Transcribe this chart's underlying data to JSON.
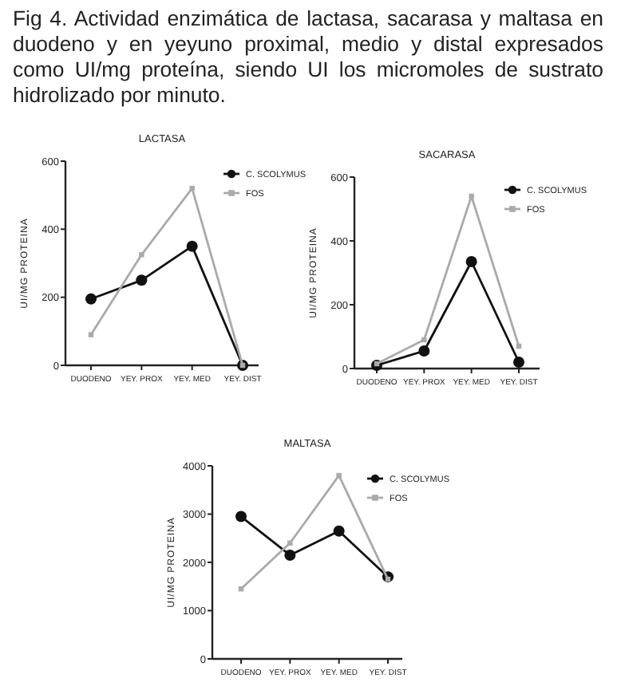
{
  "chart_data": [
    {
      "type": "other",
      "title": "Fig 4. Actividad enzimática de lactasa, sacarasa y maltasa en duodeno y en yeyuno proximal, medio y distal expresados como UI/mg proteína, siendo UI los micromoles de sustrato hidrolizado por minuto."
    },
    {
      "type": "line",
      "title": "LACTASA",
      "ylabel": "UI/MG PROTEINA",
      "categories": [
        "DUODENO",
        "YEY. PROX",
        "YEY. MED",
        "YEY. DIST"
      ],
      "ylim": [
        0,
        600
      ],
      "yticks": [
        0,
        200,
        400,
        600
      ],
      "legend": "top right",
      "grid": false,
      "series": [
        {
          "name": "C. SCOLYMUS",
          "color": "#111111",
          "marker": "circle",
          "values": [
            195,
            250,
            350,
            0
          ]
        },
        {
          "name": "FOS",
          "color": "#aaaaaa",
          "marker": "square",
          "values": [
            90,
            325,
            520,
            0
          ]
        }
      ]
    },
    {
      "type": "line",
      "title": "SACARASA",
      "ylabel": "UI/MG PROTEINA",
      "categories": [
        "DUODENO",
        "YEY. PROX",
        "YEY. MED",
        "YEY. DIST"
      ],
      "ylim": [
        0,
        600
      ],
      "yticks": [
        0,
        200,
        400,
        600
      ],
      "legend": "top right",
      "grid": false,
      "series": [
        {
          "name": "C. SCOLYMUS",
          "color": "#111111",
          "marker": "circle",
          "values": [
            10,
            55,
            335,
            20
          ]
        },
        {
          "name": "FOS",
          "color": "#aaaaaa",
          "marker": "square",
          "values": [
            15,
            90,
            540,
            70
          ]
        }
      ]
    },
    {
      "type": "line",
      "title": "MALTASA",
      "ylabel": "UI/MG PROTEINA",
      "categories": [
        "DUODENO",
        "YEY. PROX",
        "YEY. MED",
        "YEY. DIST"
      ],
      "ylim": [
        0,
        4000
      ],
      "yticks": [
        0,
        1000,
        2000,
        3000,
        4000
      ],
      "legend": "top right",
      "grid": false,
      "series": [
        {
          "name": "C. SCOLYMUS",
          "color": "#111111",
          "marker": "circle",
          "values": [
            2950,
            2150,
            2650,
            1700
          ]
        },
        {
          "name": "FOS",
          "color": "#aaaaaa",
          "marker": "square",
          "values": [
            1450,
            2400,
            3800,
            1650
          ]
        }
      ]
    }
  ]
}
